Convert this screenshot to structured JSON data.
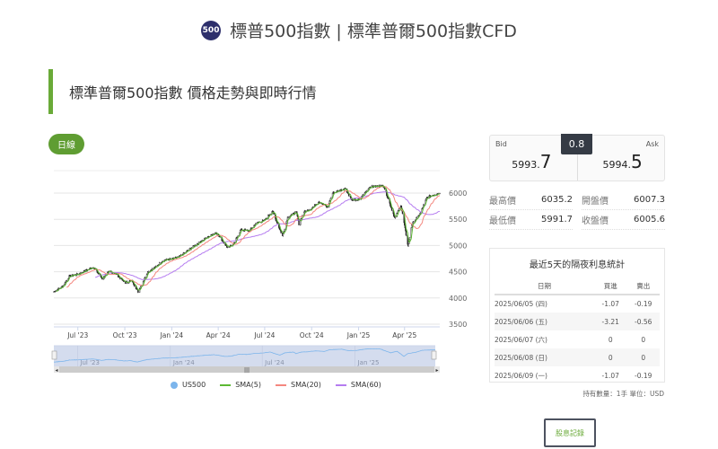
{
  "header": {
    "logo_text": "500",
    "title": "標普500指數 | 標準普爾500指數CFD"
  },
  "section": {
    "title": "標準普爾500指數 價格走勢與即時行情"
  },
  "chart_controls": {
    "period_button": "日線"
  },
  "quote": {
    "bid_label": "Bid",
    "bid_main": "5993.",
    "bid_last": "7",
    "ask_label": "Ask",
    "ask_main": "5994.",
    "ask_last": "5",
    "spread": "0.8"
  },
  "stats": [
    {
      "label": "最高價",
      "value": "6035.2"
    },
    {
      "label": "開盤價",
      "value": "6007.3"
    },
    {
      "label": "最低價",
      "value": "5991.7"
    },
    {
      "label": "收盤價",
      "value": "6005.6"
    }
  ],
  "overnight": {
    "title": "最近5天的隔夜利息統計",
    "headers": [
      "日期",
      "買進",
      "賣出"
    ],
    "rows": [
      [
        "2025/06/05 (四)",
        "-1.07",
        "-0.19"
      ],
      [
        "2025/06/06 (五)",
        "-3.21",
        "-0.56"
      ],
      [
        "2025/06/07 (六)",
        "0",
        "0"
      ],
      [
        "2025/06/08 (日)",
        "0",
        "0"
      ],
      [
        "2025/06/09 (一)",
        "-1.07",
        "-0.19"
      ]
    ],
    "note": "持有數量：1手 單位：USD"
  },
  "dividend_button": "股息記錄",
  "colors": {
    "accent": "#6aaa38",
    "sma5": "#5cb833",
    "sma20": "#f4877f",
    "sma60": "#b57cf0",
    "navigator": "#7cb5ec"
  },
  "chart_data": {
    "type": "candlestick",
    "series_name": "US500",
    "y_ticks": [
      3500,
      4000,
      4500,
      5000,
      5500,
      6000
    ],
    "ylim": [
      3500,
      6100
    ],
    "x_ticks": [
      "Jul '23",
      "Oct '23",
      "Jan '24",
      "Apr '24",
      "Jul '24",
      "Oct '24",
      "Jan '25",
      "Apr '25"
    ],
    "navigator_ticks": [
      "Jul '23",
      "Jan '24",
      "Jul '24",
      "Jan '25"
    ],
    "indicators": [
      "SMA(5)",
      "SMA(20)",
      "SMA(60)"
    ],
    "closes": [
      [
        "2023-05-15",
        4120
      ],
      [
        "2023-06-01",
        4220
      ],
      [
        "2023-06-15",
        4420
      ],
      [
        "2023-07-01",
        4450
      ],
      [
        "2023-07-31",
        4590
      ],
      [
        "2023-08-18",
        4370
      ],
      [
        "2023-09-01",
        4510
      ],
      [
        "2023-09-15",
        4450
      ],
      [
        "2023-10-01",
        4290
      ],
      [
        "2023-10-15",
        4330
      ],
      [
        "2023-10-27",
        4120
      ],
      [
        "2023-11-15",
        4500
      ],
      [
        "2023-12-01",
        4590
      ],
      [
        "2023-12-15",
        4720
      ],
      [
        "2024-01-02",
        4740
      ],
      [
        "2024-01-15",
        4780
      ],
      [
        "2024-02-01",
        4900
      ],
      [
        "2024-02-15",
        5000
      ],
      [
        "2024-03-01",
        5100
      ],
      [
        "2024-03-28",
        5250
      ],
      [
        "2024-04-19",
        4970
      ],
      [
        "2024-05-01",
        5020
      ],
      [
        "2024-05-15",
        5300
      ],
      [
        "2024-06-01",
        5280
      ],
      [
        "2024-06-15",
        5430
      ],
      [
        "2024-07-01",
        5480
      ],
      [
        "2024-07-16",
        5660
      ],
      [
        "2024-08-05",
        5180
      ],
      [
        "2024-08-15",
        5540
      ],
      [
        "2024-09-01",
        5640
      ],
      [
        "2024-09-06",
        5410
      ],
      [
        "2024-09-15",
        5630
      ],
      [
        "2024-10-01",
        5710
      ],
      [
        "2024-10-15",
        5840
      ],
      [
        "2024-11-01",
        5730
      ],
      [
        "2024-11-11",
        6000
      ],
      [
        "2024-12-06",
        6090
      ],
      [
        "2024-12-18",
        5870
      ],
      [
        "2025-01-02",
        5870
      ],
      [
        "2025-01-23",
        6120
      ],
      [
        "2025-02-19",
        6140
      ],
      [
        "2025-03-13",
        5520
      ],
      [
        "2025-03-25",
        5770
      ],
      [
        "2025-04-08",
        4980
      ],
      [
        "2025-04-15",
        5400
      ],
      [
        "2025-05-01",
        5600
      ],
      [
        "2025-05-15",
        5920
      ],
      [
        "2025-06-09",
        6005
      ]
    ]
  }
}
